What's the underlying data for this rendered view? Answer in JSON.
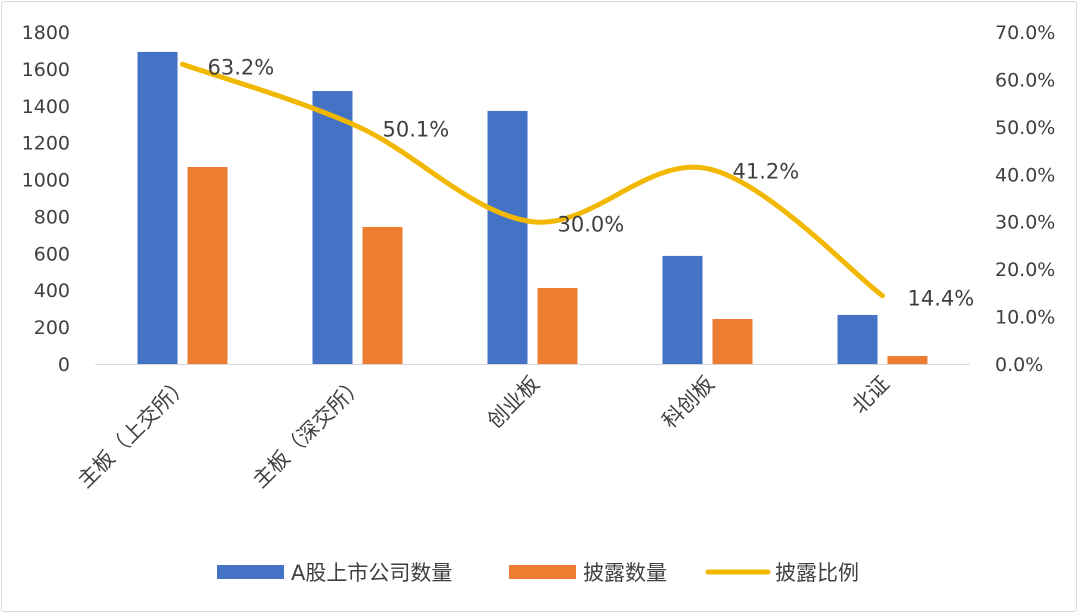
{
  "chart_data": {
    "type": "bar",
    "categories": [
      "主板（上交所）",
      "主板（深交所）",
      "创业板",
      "科创板",
      "北证"
    ],
    "series": [
      {
        "name": "A股上市公司数量",
        "type": "bar",
        "axis": "left",
        "color": "#4472C4",
        "values": [
          1692,
          1480,
          1372,
          586,
          266
        ]
      },
      {
        "name": "披露数量",
        "type": "bar",
        "axis": "left",
        "color": "#ED7D31",
        "values": [
          1068,
          743,
          412,
          244,
          43
        ]
      },
      {
        "name": "披露比例",
        "type": "line",
        "axis": "right",
        "color": "#F2B800",
        "values": [
          63.2,
          50.1,
          30.0,
          41.2,
          14.4
        ],
        "labels": [
          "63.2%",
          "50.1%",
          "30.0%",
          "41.2%",
          "14.4%"
        ]
      }
    ],
    "left_axis": {
      "range": [
        0,
        1800
      ],
      "ticks": [
        "0",
        "200",
        "400",
        "600",
        "800",
        "1000",
        "1200",
        "1400",
        "1600",
        "1800"
      ]
    },
    "right_axis": {
      "range": [
        0,
        70
      ],
      "ticks": [
        "0.0%",
        "10.0%",
        "20.0%",
        "30.0%",
        "40.0%",
        "50.0%",
        "60.0%",
        "70.0%"
      ]
    },
    "grid": false,
    "legend_position": "bottom"
  }
}
